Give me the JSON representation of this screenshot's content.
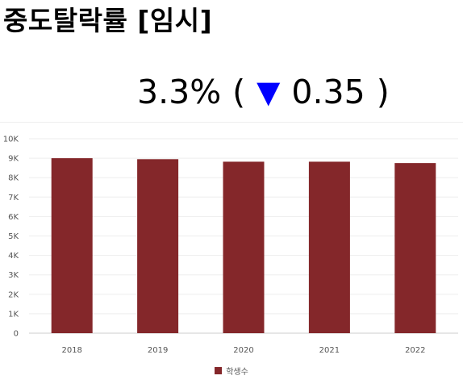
{
  "header": {
    "title": "중도탈락률 [임시]"
  },
  "metric": {
    "value": "3.3%",
    "open_paren": "(",
    "arrow": "▼",
    "change": "0.35",
    "close_paren": ")",
    "arrow_color": "#0000ff"
  },
  "legend": {
    "label": "학생수"
  },
  "chart_data": {
    "type": "bar",
    "categories": [
      "2018",
      "2019",
      "2020",
      "2021",
      "2022"
    ],
    "series": [
      {
        "name": "학생수",
        "values": [
          9000,
          8950,
          8820,
          8820,
          8750
        ],
        "color": "#84272a"
      }
    ],
    "ylim": [
      0,
      10000
    ],
    "yticks": [
      0,
      1000,
      2000,
      3000,
      4000,
      5000,
      6000,
      7000,
      8000,
      9000,
      10000
    ],
    "ytick_labels": [
      "0",
      "1K",
      "2K",
      "3K",
      "4K",
      "5K",
      "6K",
      "7K",
      "8K",
      "9K",
      "10K"
    ],
    "grid": true,
    "legend_position": "bottom-center"
  }
}
